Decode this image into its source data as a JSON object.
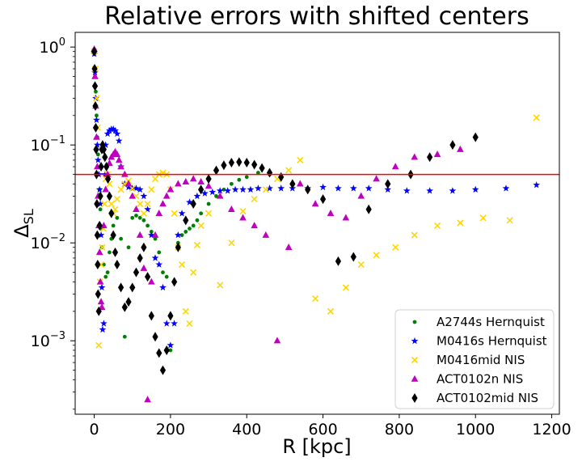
{
  "chart_data": {
    "type": "scatter",
    "title": "Relative errors with shifted centers",
    "xlabel": "R [kpc]",
    "ylabel_main": "Δ",
    "ylabel_sub": "SL",
    "xlim": [
      -50,
      1220
    ],
    "ylim_log10": [
      -3.75,
      0.15
    ],
    "x_ticks": [
      0,
      200,
      400,
      600,
      800,
      1000,
      1200
    ],
    "y_ticks": [
      {
        "exp": 0,
        "base": "10",
        "sup": "0"
      },
      {
        "exp": -1,
        "base": "10",
        "sup": "−1"
      },
      {
        "exp": -2,
        "base": "10",
        "sup": "−2"
      },
      {
        "exp": -3,
        "base": "10",
        "sup": "−3"
      }
    ],
    "threshold": {
      "value": 0.05,
      "color": "#ff0000"
    },
    "legend_position": "lower-right",
    "series": [
      {
        "name": "A2744s Hernquist",
        "marker": "dot",
        "color": "#008000",
        "x": [
          0,
          2,
          4,
          6,
          8,
          10,
          12,
          14,
          16,
          18,
          20,
          25,
          30,
          35,
          40,
          45,
          50,
          60,
          70,
          80,
          90,
          100,
          110,
          120,
          130,
          140,
          150,
          160,
          170,
          180,
          190,
          200,
          210,
          220,
          230,
          240,
          250,
          260,
          270,
          280,
          300,
          320,
          340,
          360,
          380,
          400,
          430,
          460
        ],
        "y": [
          0.95,
          0.6,
          0.35,
          0.2,
          0.12,
          0.08,
          0.05,
          0.035,
          0.022,
          0.014,
          0.009,
          0.006,
          0.0045,
          0.005,
          0.008,
          0.011,
          0.015,
          0.018,
          0.011,
          0.0011,
          0.009,
          0.018,
          0.019,
          0.018,
          0.017,
          0.015,
          0.013,
          0.011,
          0.008,
          0.005,
          0.0045,
          0.0008,
          0.004,
          0.01,
          0.012,
          0.013,
          0.014,
          0.015,
          0.017,
          0.02,
          0.025,
          0.03,
          0.035,
          0.04,
          0.044,
          0.047,
          0.052,
          0.05
        ]
      },
      {
        "name": "M0416s Hernquist",
        "marker": "star",
        "color": "#0000ff",
        "x": [
          0,
          2,
          4,
          6,
          8,
          10,
          12,
          14,
          16,
          18,
          20,
          22,
          25,
          28,
          30,
          35,
          40,
          45,
          50,
          55,
          60,
          65,
          70,
          80,
          90,
          100,
          110,
          120,
          130,
          140,
          150,
          160,
          170,
          180,
          190,
          200,
          210,
          220,
          230,
          250,
          270,
          290,
          310,
          330,
          350,
          370,
          390,
          410,
          430,
          460,
          490,
          520,
          560,
          600,
          640,
          680,
          720,
          770,
          820,
          880,
          940,
          1000,
          1080,
          1160
        ],
        "y": [
          0.85,
          0.55,
          0.3,
          0.18,
          0.1,
          0.07,
          0.05,
          0.035,
          0.025,
          0.012,
          0.0035,
          0.0013,
          0.0015,
          0.05,
          0.1,
          0.13,
          0.14,
          0.145,
          0.145,
          0.14,
          0.13,
          0.11,
          0.06,
          0.04,
          0.037,
          0.036,
          0.036,
          0.035,
          0.03,
          0.022,
          0.012,
          0.007,
          0.006,
          0.0035,
          0.0015,
          0.0009,
          0.0015,
          0.012,
          0.02,
          0.026,
          0.03,
          0.032,
          0.033,
          0.034,
          0.034,
          0.035,
          0.035,
          0.035,
          0.036,
          0.036,
          0.036,
          0.036,
          0.036,
          0.037,
          0.036,
          0.036,
          0.036,
          0.035,
          0.034,
          0.034,
          0.034,
          0.035,
          0.036,
          0.039
        ]
      },
      {
        "name": "M0416mid NIS",
        "marker": "x",
        "color": "#ffd700",
        "x": [
          0,
          3,
          6,
          9,
          12,
          15,
          18,
          21,
          24,
          27,
          30,
          35,
          40,
          45,
          50,
          55,
          60,
          70,
          80,
          90,
          100,
          110,
          120,
          130,
          140,
          150,
          160,
          170,
          180,
          190,
          200,
          210,
          220,
          230,
          240,
          250,
          260,
          270,
          280,
          300,
          330,
          360,
          390,
          420,
          450,
          480,
          510,
          540,
          580,
          620,
          660,
          700,
          740,
          790,
          840,
          900,
          960,
          1020,
          1090,
          1160
        ],
        "y": [
          0.9,
          0.6,
          0.3,
          0.15,
          0.0009,
          0.004,
          0.006,
          0.009,
          0.014,
          0.025,
          0.045,
          0.05,
          0.04,
          0.025,
          0.02,
          0.022,
          0.028,
          0.035,
          0.04,
          0.043,
          0.036,
          0.03,
          0.025,
          0.02,
          0.025,
          0.035,
          0.045,
          0.05,
          0.052,
          0.05,
          0.035,
          0.02,
          0.009,
          0.006,
          0.002,
          0.0015,
          0.005,
          0.0095,
          0.015,
          0.02,
          0.0037,
          0.01,
          0.021,
          0.028,
          0.035,
          0.045,
          0.055,
          0.07,
          0.0027,
          0.002,
          0.0035,
          0.006,
          0.0075,
          0.009,
          0.012,
          0.015,
          0.016,
          0.018,
          0.017,
          0.19
        ]
      },
      {
        "name": "ACT0102n NIS",
        "marker": "triangle",
        "color": "#c000c0",
        "x": [
          0,
          2,
          4,
          6,
          8,
          10,
          12,
          14,
          16,
          18,
          20,
          25,
          30,
          35,
          40,
          45,
          50,
          55,
          60,
          65,
          70,
          80,
          90,
          100,
          110,
          120,
          130,
          140,
          150,
          160,
          170,
          180,
          190,
          200,
          220,
          240,
          260,
          280,
          300,
          330,
          360,
          390,
          420,
          450,
          480,
          510,
          540,
          580,
          620,
          660,
          700,
          740,
          790,
          840,
          900,
          960
        ],
        "y": [
          0.95,
          0.5,
          0.25,
          0.12,
          0.06,
          0.03,
          0.015,
          0.008,
          0.004,
          0.0025,
          0.0022,
          0.015,
          0.035,
          0.05,
          0.065,
          0.075,
          0.08,
          0.085,
          0.08,
          0.07,
          0.06,
          0.05,
          0.04,
          0.03,
          0.022,
          0.012,
          0.0055,
          0.00025,
          0.004,
          0.012,
          0.02,
          0.025,
          0.03,
          0.035,
          0.04,
          0.042,
          0.045,
          0.042,
          0.038,
          0.03,
          0.022,
          0.018,
          0.015,
          0.012,
          0.001,
          0.009,
          0.04,
          0.025,
          0.02,
          0.018,
          0.03,
          0.045,
          0.06,
          0.075,
          0.08,
          0.09
        ]
      },
      {
        "name": "ACT0102mid NIS",
        "marker": "diamond",
        "color": "#000000",
        "x": [
          0,
          1,
          2,
          3,
          4,
          5,
          6,
          7,
          8,
          9,
          10,
          12,
          14,
          16,
          18,
          20,
          22,
          25,
          28,
          32,
          36,
          40,
          45,
          50,
          55,
          60,
          70,
          80,
          90,
          100,
          110,
          120,
          130,
          140,
          150,
          160,
          170,
          180,
          190,
          200,
          210,
          220,
          240,
          260,
          280,
          300,
          320,
          340,
          360,
          380,
          400,
          420,
          440,
          460,
          490,
          520,
          560,
          600,
          640,
          680,
          720,
          770,
          830,
          880,
          940,
          1000
        ],
        "y": [
          0.9,
          0.6,
          0.4,
          0.25,
          0.15,
          0.09,
          0.05,
          0.025,
          0.012,
          0.006,
          0.003,
          0.002,
          0.015,
          0.03,
          0.06,
          0.09,
          0.1,
          0.09,
          0.075,
          0.06,
          0.045,
          0.03,
          0.02,
          0.012,
          0.008,
          0.006,
          0.0035,
          0.0022,
          0.0025,
          0.0035,
          0.005,
          0.007,
          0.009,
          0.0045,
          0.0018,
          0.0011,
          0.00075,
          0.0005,
          0.0008,
          0.0018,
          0.004,
          0.009,
          0.017,
          0.025,
          0.035,
          0.045,
          0.055,
          0.062,
          0.066,
          0.067,
          0.066,
          0.063,
          0.058,
          0.052,
          0.047,
          0.04,
          0.035,
          0.028,
          0.0065,
          0.0072,
          0.022,
          0.04,
          0.05,
          0.075,
          0.1,
          0.12
        ]
      }
    ]
  }
}
